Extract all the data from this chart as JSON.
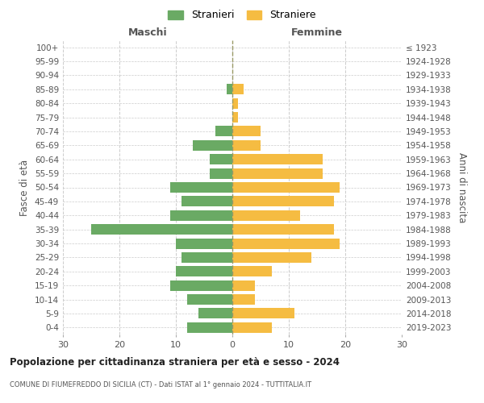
{
  "age_groups": [
    "0-4",
    "5-9",
    "10-14",
    "15-19",
    "20-24",
    "25-29",
    "30-34",
    "35-39",
    "40-44",
    "45-49",
    "50-54",
    "55-59",
    "60-64",
    "65-69",
    "70-74",
    "75-79",
    "80-84",
    "85-89",
    "90-94",
    "95-99",
    "100+"
  ],
  "birth_years": [
    "2019-2023",
    "2014-2018",
    "2009-2013",
    "2004-2008",
    "1999-2003",
    "1994-1998",
    "1989-1993",
    "1984-1988",
    "1979-1983",
    "1974-1978",
    "1969-1973",
    "1964-1968",
    "1959-1963",
    "1954-1958",
    "1949-1953",
    "1944-1948",
    "1939-1943",
    "1934-1938",
    "1929-1933",
    "1924-1928",
    "≤ 1923"
  ],
  "maschi": [
    8,
    6,
    8,
    11,
    10,
    9,
    10,
    25,
    11,
    9,
    11,
    4,
    4,
    7,
    3,
    0,
    0,
    1,
    0,
    0,
    0
  ],
  "femmine": [
    7,
    11,
    4,
    4,
    7,
    14,
    19,
    18,
    12,
    18,
    19,
    16,
    16,
    5,
    5,
    1,
    1,
    2,
    0,
    0,
    0
  ],
  "maschi_color": "#6aaa64",
  "femmine_color": "#f5bc42",
  "background_color": "#ffffff",
  "grid_color": "#cccccc",
  "title": "Popolazione per cittadinanza straniera per età e sesso - 2024",
  "subtitle": "COMUNE DI FIUMEFREDDO DI SICILIA (CT) - Dati ISTAT al 1° gennaio 2024 - TUTTITALIA.IT",
  "xlabel_left": "Maschi",
  "xlabel_right": "Femmine",
  "ylabel_left": "Fasce di età",
  "ylabel_right": "Anni di nascita",
  "legend_maschi": "Stranieri",
  "legend_femmine": "Straniere",
  "xlim": 30
}
